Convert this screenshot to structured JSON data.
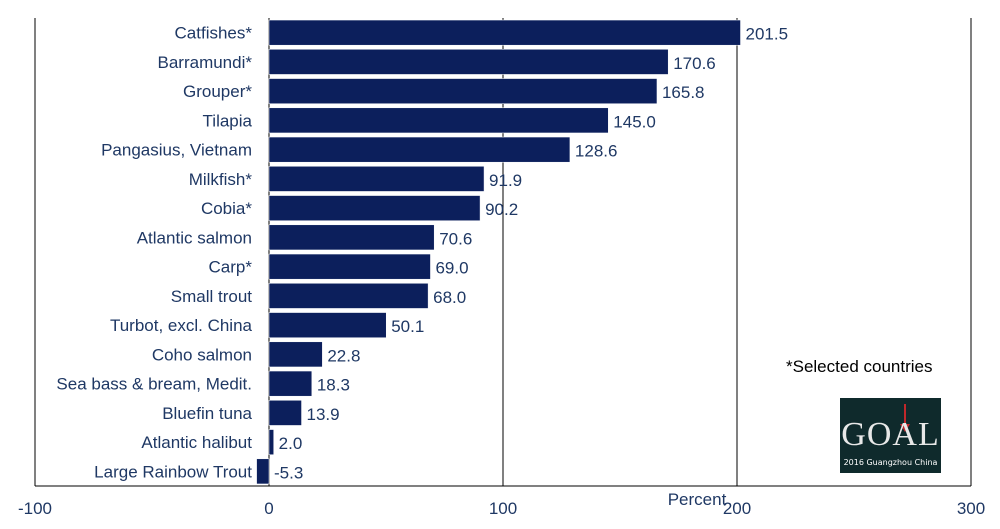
{
  "chart_data": {
    "type": "bar",
    "orientation": "horizontal",
    "categories": [
      "Catfishes*",
      "Barramundi*",
      "Grouper*",
      "Tilapia",
      "Pangasius, Vietnam",
      "Milkfish*",
      "Cobia*",
      "Atlantic salmon",
      "Carp*",
      "Small trout",
      "Turbot, excl. China",
      "Coho salmon",
      "Sea bass & bream, Medit.",
      "Bluefin tuna",
      "Atlantic halibut",
      "Large Rainbow Trout"
    ],
    "values": [
      201.5,
      170.6,
      165.8,
      145.0,
      128.6,
      91.9,
      90.2,
      70.6,
      69.0,
      68.0,
      50.1,
      22.8,
      18.3,
      13.9,
      2.0,
      -5.3
    ],
    "value_labels": [
      "201.5",
      "170.6",
      "165.8",
      "145.0",
      "128.6",
      "91.9",
      "90.2",
      "70.6",
      "69.0",
      "68.0",
      "50.1",
      "22.8",
      "18.3",
      "13.9",
      "2.0",
      "-5.3"
    ],
    "xlabel": "Percent",
    "xlim": [
      -100,
      300
    ],
    "xticks": [
      -100,
      0,
      100,
      200,
      300
    ],
    "xtick_labels": [
      "-100",
      "0",
      "100",
      "200",
      "300"
    ],
    "grid": "vertical",
    "bar_color": "#0c1f5c",
    "label_color": "#1f3864"
  },
  "note": "*Selected countries",
  "logo": {
    "word": "GOAL",
    "sub": "2016 Guangzhou China",
    "background": "#0f2a2c",
    "accent": "#c0282b"
  }
}
